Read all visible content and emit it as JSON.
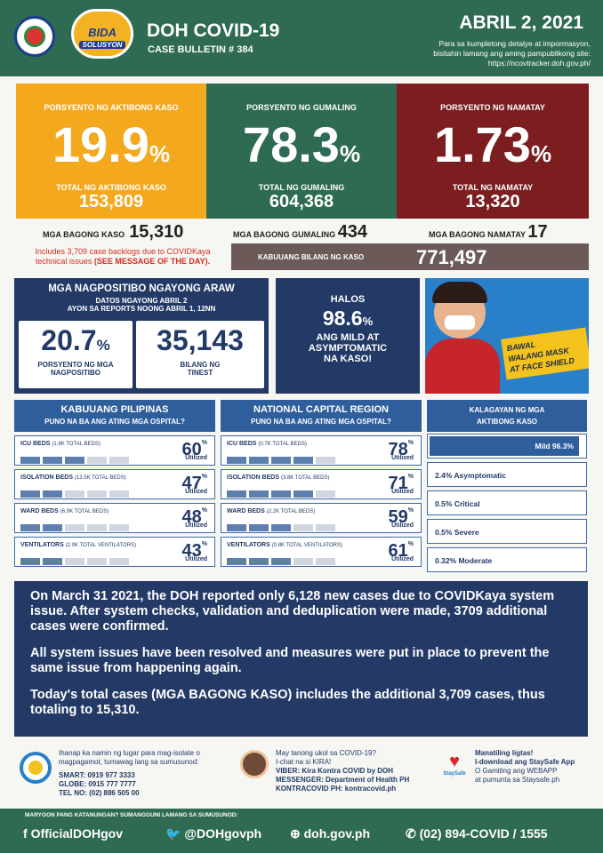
{
  "header": {
    "title": "DOH COVID-19",
    "bulletin": "CASE BULLETIN # 384",
    "date": "ABRIL 2, 2021",
    "note1": "Para sa kumpletong detalye at impormasyon,",
    "note2": "bisitahin lamang ang aming pampublikong site:",
    "note3": "https://ncovtracker.doh.gov.ph/",
    "logo_text": "BIDA",
    "logo_sub": "SOLUSYON"
  },
  "kpis": [
    {
      "label": "PORSYENTO NG AKTIBONG KASO",
      "value": "19.9",
      "unit": "%",
      "sub": "TOTAL NG AKTIBONG KASO",
      "count": "153,809",
      "color": "#f4a81d"
    },
    {
      "label": "PORSYENTO NG GUMALING",
      "value": "78.3",
      "unit": "%",
      "sub": "TOTAL NG GUMALING",
      "count": "604,368",
      "color": "#2f6b52"
    },
    {
      "label": "PORSYENTO NG NAMATAY",
      "value": "1.73",
      "unit": "%",
      "sub": "TOTAL NG NAMATAY",
      "count": "13,320",
      "color": "#7c1e20"
    }
  ],
  "new": {
    "cases_label": "MGA BAGONG KASO",
    "cases": "15,310",
    "recov_label": "MGA BAGONG GUMALING",
    "recov": "434",
    "death_label": "MGA BAGONG NAMATAY",
    "deaths": "17",
    "note1": "Includes 3,709 case backlogs due to COVIDKaya",
    "note2": "technical issues",
    "note3": "(SEE MESSAGE OF THE DAY)."
  },
  "total": {
    "label": "KABUUANG BILANG NG KASO",
    "value": "771,497"
  },
  "positive": {
    "title": "MGA NAGPOSITIBO NGAYONG ARAW",
    "sub1": "DATOS NGAYONG ABRIL 2",
    "sub2": "AYON SA REPORTS NOONG ABRIL 1, 12NN",
    "pct": "20.7",
    "pct_unit": "%",
    "pct_label1": "PORSYENTO NG MGA",
    "pct_label2": "NAGPOSITIBO",
    "tests": "35,143",
    "tests_label1": "BILANG NG",
    "tests_label2": "TINEST"
  },
  "mild": {
    "l1": "HALOS",
    "value": "98.6",
    "unit": "%",
    "l2": "ANG MILD AT",
    "l3": "ASYMPTOMATIC",
    "l4": "NA KASO!"
  },
  "banner": {
    "l1": "BAWAL",
    "l2": "WALANG MASK",
    "l3": "AT FACE SHIELD"
  },
  "ph": {
    "title": "KABUUANG PILIPINAS",
    "sub": "PUNO NA BA ANG ATING MGA OSPITAL?",
    "rows": [
      {
        "label": "ICU BEDS",
        "detail": "(1.9K TOTAL BEDS)",
        "pct": "60",
        "fill": 0.6
      },
      {
        "label": "ISOLATION BEDS",
        "detail": "(13.5K TOTAL BEDS)",
        "pct": "47",
        "fill": 0.47
      },
      {
        "label": "WARD BEDS",
        "detail": "(6.0K TOTAL BEDS)",
        "pct": "48",
        "fill": 0.48
      },
      {
        "label": "VENTILATORS",
        "detail": "(2.0K TOTAL VENTILATORS)",
        "pct": "43",
        "fill": 0.43
      }
    ]
  },
  "ncr": {
    "title": "NATIONAL CAPITAL REGION",
    "sub": "PUNO NA BA ANG ATING MGA OSPITAL?",
    "rows": [
      {
        "label": "ICU BEDS",
        "detail": "(0.7K TOTAL BEDS)",
        "pct": "78",
        "fill": 0.78
      },
      {
        "label": "ISOLATION BEDS",
        "detail": "(3.8K TOTAL BEDS)",
        "pct": "71",
        "fill": 0.71
      },
      {
        "label": "WARD BEDS",
        "detail": "(2.2K TOTAL BEDS)",
        "pct": "59",
        "fill": 0.59
      },
      {
        "label": "VENTILATORS",
        "detail": "(0.8K TOTAL VENTILATORS)",
        "pct": "61",
        "fill": 0.61
      }
    ]
  },
  "utilized": "Utilized",
  "pct_sign": "%",
  "active": {
    "title1": "KALAGAYAN NG MGA",
    "title2": "AKTIBONG KASO",
    "items": [
      "Mild 96.3%",
      "2.4% Asymptomatic",
      "0.5% Critical",
      "0.5% Severe",
      "0.32% Moderate"
    ],
    "mild_fill": 0.963
  },
  "message": {
    "p1": "On March 31 2021, the DOH reported only 6,128 new cases due to COVIDKaya system issue. After system checks, validation and deduplication were made, 3709 additional cases were confirmed.",
    "p2": "All system issues have been resolved and measures were put in place to prevent the same issue from happening again.",
    "p3": "Today's total cases (MGA BAGONG KASO) includes the additional 3,709 cases, thus totaling to 15,310."
  },
  "contacts": {
    "c1a": "Ihanap ka namin ng lugar para mag-isolate o",
    "c1b": "magpagamot, tumawag lang sa sumusunod:",
    "smart": "SMART: 0919 977 3333",
    "globe": "GLOBE: 0915 777 7777",
    "tel": "TEL NO: (02) 886 505 00",
    "c2a": "May tanong ukol sa COVID-19?",
    "c2b": "I-chat na si KIRA!",
    "viber": "VIBER: Kira Kontra COVID by DOH",
    "messenger": "MESSENGER: Department of Health PH",
    "kontra": "KONTRACOVID PH: kontracovid.ph",
    "c3a": "Manatiling ligtas!",
    "c3b": "I-download ang StaySafe App",
    "c3c": "O Gamiting ang WEBAPP",
    "c3d": "at pumunta sa Staysafe.ph",
    "staysafe": "StaySafe"
  },
  "footer": {
    "note": "MARYOON PANG KATANUNGAN? SUMANGGUNI LAMANG SA SUMUSUNOD:",
    "fb": "OfficialDOHgov",
    "tw": "@DOHgovph",
    "web": "doh.gov.ph",
    "phone": "(02) 894-COVID  /  1555"
  }
}
